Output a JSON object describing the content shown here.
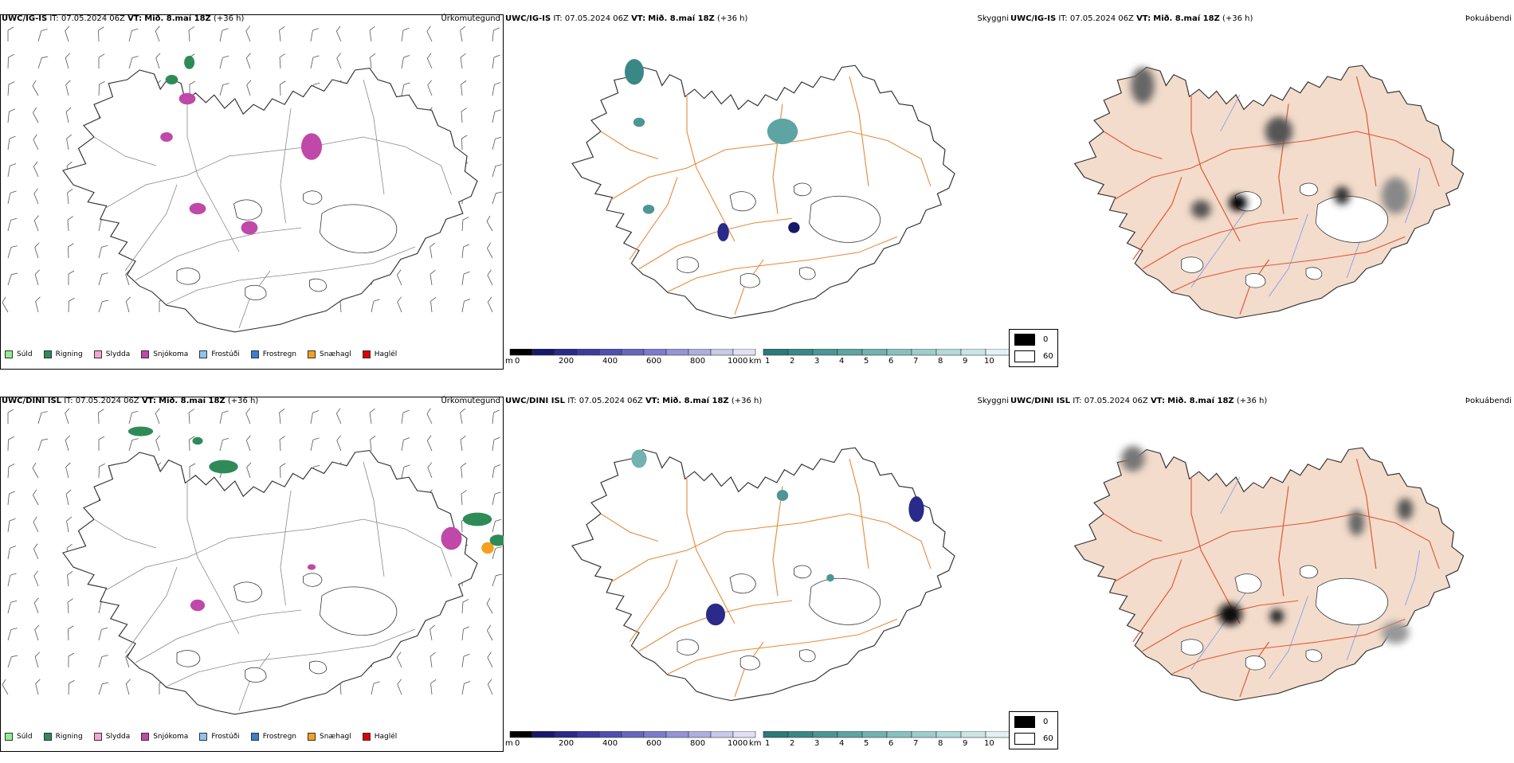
{
  "rows": [
    {
      "precip": {
        "model": "UWC/IG-IS",
        "it_label": "IT:",
        "it_value": "07.05.2024 06Z",
        "vt_label": "VT:",
        "vt_value": "Mið. 8.maí 18Z",
        "lead": "(+36 h)",
        "right_label": "Úrkomutegund"
      },
      "vis": {
        "model": "UWC/IG-IS",
        "it_label": "IT:",
        "it_value": "07.05.2024 06Z",
        "vt_label": "VT:",
        "vt_value": "Mið. 8.maí 18Z",
        "lead": "(+36 h)",
        "right_label": "Skyggni"
      },
      "fog": {
        "model": "UWC/IG-IS",
        "it_label": "IT:",
        "it_value": "07.05.2024 06Z",
        "vt_label": "VT:",
        "vt_value": "Mið. 8.maí 18Z",
        "lead": "(+36 h)",
        "right_label": "Þokuábendi"
      }
    },
    {
      "precip": {
        "model": "UWC/DINI ISL",
        "it_label": "IT:",
        "it_value": "07.05.2024 06Z",
        "vt_label": "VT:",
        "vt_value": "Mið. 8.maí 18Z",
        "lead": "(+36 h)",
        "right_label": "Úrkomutegund"
      },
      "vis": {
        "model": "UWC/DINI ISL",
        "it_label": "IT:",
        "it_value": "07.05.2024 06Z",
        "vt_label": "VT:",
        "vt_value": "Mið. 8.maí 18Z",
        "lead": "(+36 h)",
        "right_label": "Skyggni"
      },
      "fog": {
        "model": "UWC/DINI ISL",
        "it_label": "IT:",
        "it_value": "07.05.2024 06Z",
        "vt_label": "VT:",
        "vt_value": "Mið. 8.maí 18Z",
        "lead": "(+36 h)",
        "right_label": "Þokuábendi"
      }
    }
  ],
  "precip_legend": [
    {
      "label": "Súld",
      "color": "#90ee90"
    },
    {
      "label": "Rigning",
      "color": "#2e8b57"
    },
    {
      "label": "Slydda",
      "color": "#f4a6d0"
    },
    {
      "label": "Snjókoma",
      "color": "#c048a8"
    },
    {
      "label": "Frostúði",
      "color": "#90c4f0"
    },
    {
      "label": "Frostregn",
      "color": "#3a7fd0"
    },
    {
      "label": "Snæhagl",
      "color": "#f5a020"
    },
    {
      "label": "Haglél",
      "color": "#e00000"
    }
  ],
  "vis_scale_m": {
    "unit": "m",
    "ticks": [
      "0",
      "200",
      "400",
      "600",
      "800",
      "1000"
    ],
    "colors": [
      "#000000",
      "#18186a",
      "#2a2a8a",
      "#3c3ca0",
      "#5050b0",
      "#6666c0",
      "#7c7ccc",
      "#9494d6",
      "#aeaee0",
      "#c8c8ea",
      "#e0e0f4"
    ]
  },
  "vis_scale_km": {
    "unit": "km",
    "ticks": [
      "1",
      "2",
      "3",
      "4",
      "5",
      "6",
      "7",
      "8",
      "9",
      "10"
    ],
    "colors": [
      "#2a7a78",
      "#3a8886",
      "#4c9694",
      "#5ea4a2",
      "#72b2b0",
      "#88c0be",
      "#9ecdcb",
      "#b4dad8",
      "#cae6e4",
      "#e0f2f1"
    ]
  },
  "fog_legend": [
    {
      "label": "0",
      "color": "#000000"
    },
    {
      "label": "60",
      "color": "#ffffff"
    }
  ],
  "colors": {
    "land_fog": "#f3dccb",
    "roads": "#e8893a",
    "roads_fog": "#e05a3a",
    "rivers": "#7a96f0",
    "outline": "#222222"
  }
}
